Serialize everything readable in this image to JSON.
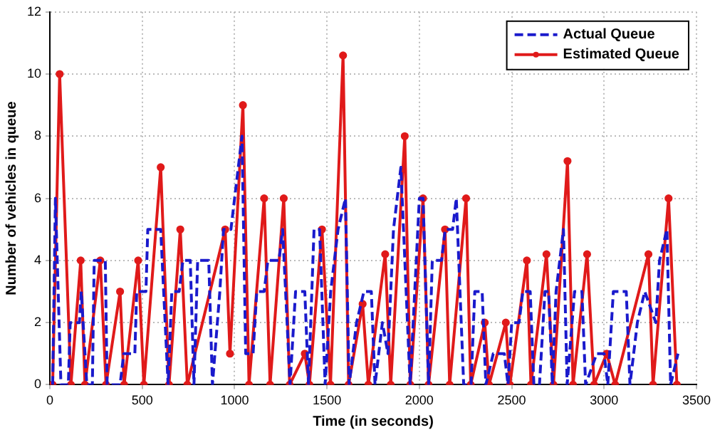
{
  "chart_data": {
    "type": "line",
    "xlabel": "Time (in seconds)",
    "ylabel": "Number of vehicles in queue",
    "xlim": [
      0,
      3500
    ],
    "ylim": [
      0,
      12
    ],
    "xticks": [
      0,
      500,
      1000,
      1500,
      2000,
      2500,
      3000,
      3500
    ],
    "yticks": [
      0,
      2,
      4,
      6,
      8,
      10,
      12
    ],
    "grid": true,
    "legend": "top right",
    "series": [
      {
        "name": "Actual Queue",
        "color": "#1a1acc",
        "line_style": "dashed",
        "marker": "none",
        "x": [
          15,
          30,
          60,
          100,
          110,
          160,
          170,
          200,
          230,
          240,
          300,
          310,
          380,
          400,
          460,
          470,
          520,
          530,
          600,
          640,
          660,
          700,
          720,
          760,
          780,
          800,
          860,
          880,
          920,
          940,
          980,
          1000,
          1040,
          1060,
          1100,
          1120,
          1160,
          1180,
          1240,
          1260,
          1300,
          1330,
          1380,
          1400,
          1430,
          1460,
          1490,
          1520,
          1560,
          1600,
          1620,
          1660,
          1700,
          1740,
          1760,
          1800,
          1830,
          1860,
          1900,
          1950,
          2000,
          2020,
          2050,
          2070,
          2120,
          2140,
          2180,
          2200,
          2240,
          2280,
          2300,
          2340,
          2360,
          2400,
          2460,
          2480,
          2500,
          2540,
          2560,
          2600,
          2620,
          2650,
          2680,
          2700,
          2720,
          2740,
          2780,
          2800,
          2840,
          2880,
          2900,
          2960,
          3000,
          3020,
          3050,
          3120,
          3140,
          3180,
          3220,
          3280,
          3300,
          3340,
          3360,
          3400
        ],
        "values": [
          0,
          6,
          0,
          0,
          2,
          2,
          3,
          0,
          0,
          4,
          4,
          0,
          0,
          1,
          1,
          3,
          3,
          5,
          5,
          0,
          3,
          3,
          4,
          4,
          0,
          4,
          4,
          0,
          3,
          5,
          5,
          6,
          8,
          1,
          1,
          3,
          3,
          4,
          4,
          5,
          0,
          3,
          3,
          0,
          5,
          5,
          0,
          3,
          5,
          6,
          0,
          2,
          3,
          3,
          0,
          2,
          1,
          5,
          7,
          0,
          6,
          6,
          0,
          4,
          4,
          5,
          5,
          6,
          0,
          0,
          3,
          3,
          0,
          1,
          1,
          0,
          2,
          2,
          3,
          3,
          0,
          0,
          3,
          3,
          0,
          3,
          5,
          0,
          3,
          3,
          0,
          1,
          1,
          0,
          3,
          3,
          0,
          2,
          3,
          2,
          4,
          5,
          0,
          1
        ]
      },
      {
        "name": "Estimated Queue",
        "color": "#e01a1a",
        "line_style": "solid",
        "marker": "circle",
        "x": [
          15,
          53,
          114,
          167,
          190,
          273,
          304,
          380,
          402,
          478,
          509,
          600,
          645,
          706,
          744,
          949,
          975,
          1045,
          1078,
          1160,
          1192,
          1266,
          1298,
          1380,
          1405,
          1473,
          1519,
          1587,
          1617,
          1693,
          1724,
          1815,
          1845,
          1921,
          1951,
          2020,
          2050,
          2139,
          2164,
          2253,
          2278,
          2354,
          2377,
          2468,
          2490,
          2582,
          2604,
          2688,
          2726,
          2802,
          2832,
          2908,
          2946,
          3014,
          3060,
          3240,
          3265,
          3349,
          3394
        ],
        "values": [
          0,
          10,
          0,
          4,
          0,
          4,
          0,
          3,
          0,
          4,
          0,
          7,
          0,
          5,
          0,
          5,
          1,
          9,
          0,
          6,
          0,
          6,
          0,
          1,
          0,
          5,
          0,
          10.6,
          0,
          2.6,
          0,
          4.2,
          0,
          8,
          0,
          6,
          0,
          5,
          0,
          6,
          0,
          2,
          0,
          2,
          0,
          4,
          0,
          4.2,
          0,
          7.2,
          0,
          4.2,
          0,
          1,
          0,
          4.2,
          0,
          6,
          0
        ]
      }
    ]
  }
}
